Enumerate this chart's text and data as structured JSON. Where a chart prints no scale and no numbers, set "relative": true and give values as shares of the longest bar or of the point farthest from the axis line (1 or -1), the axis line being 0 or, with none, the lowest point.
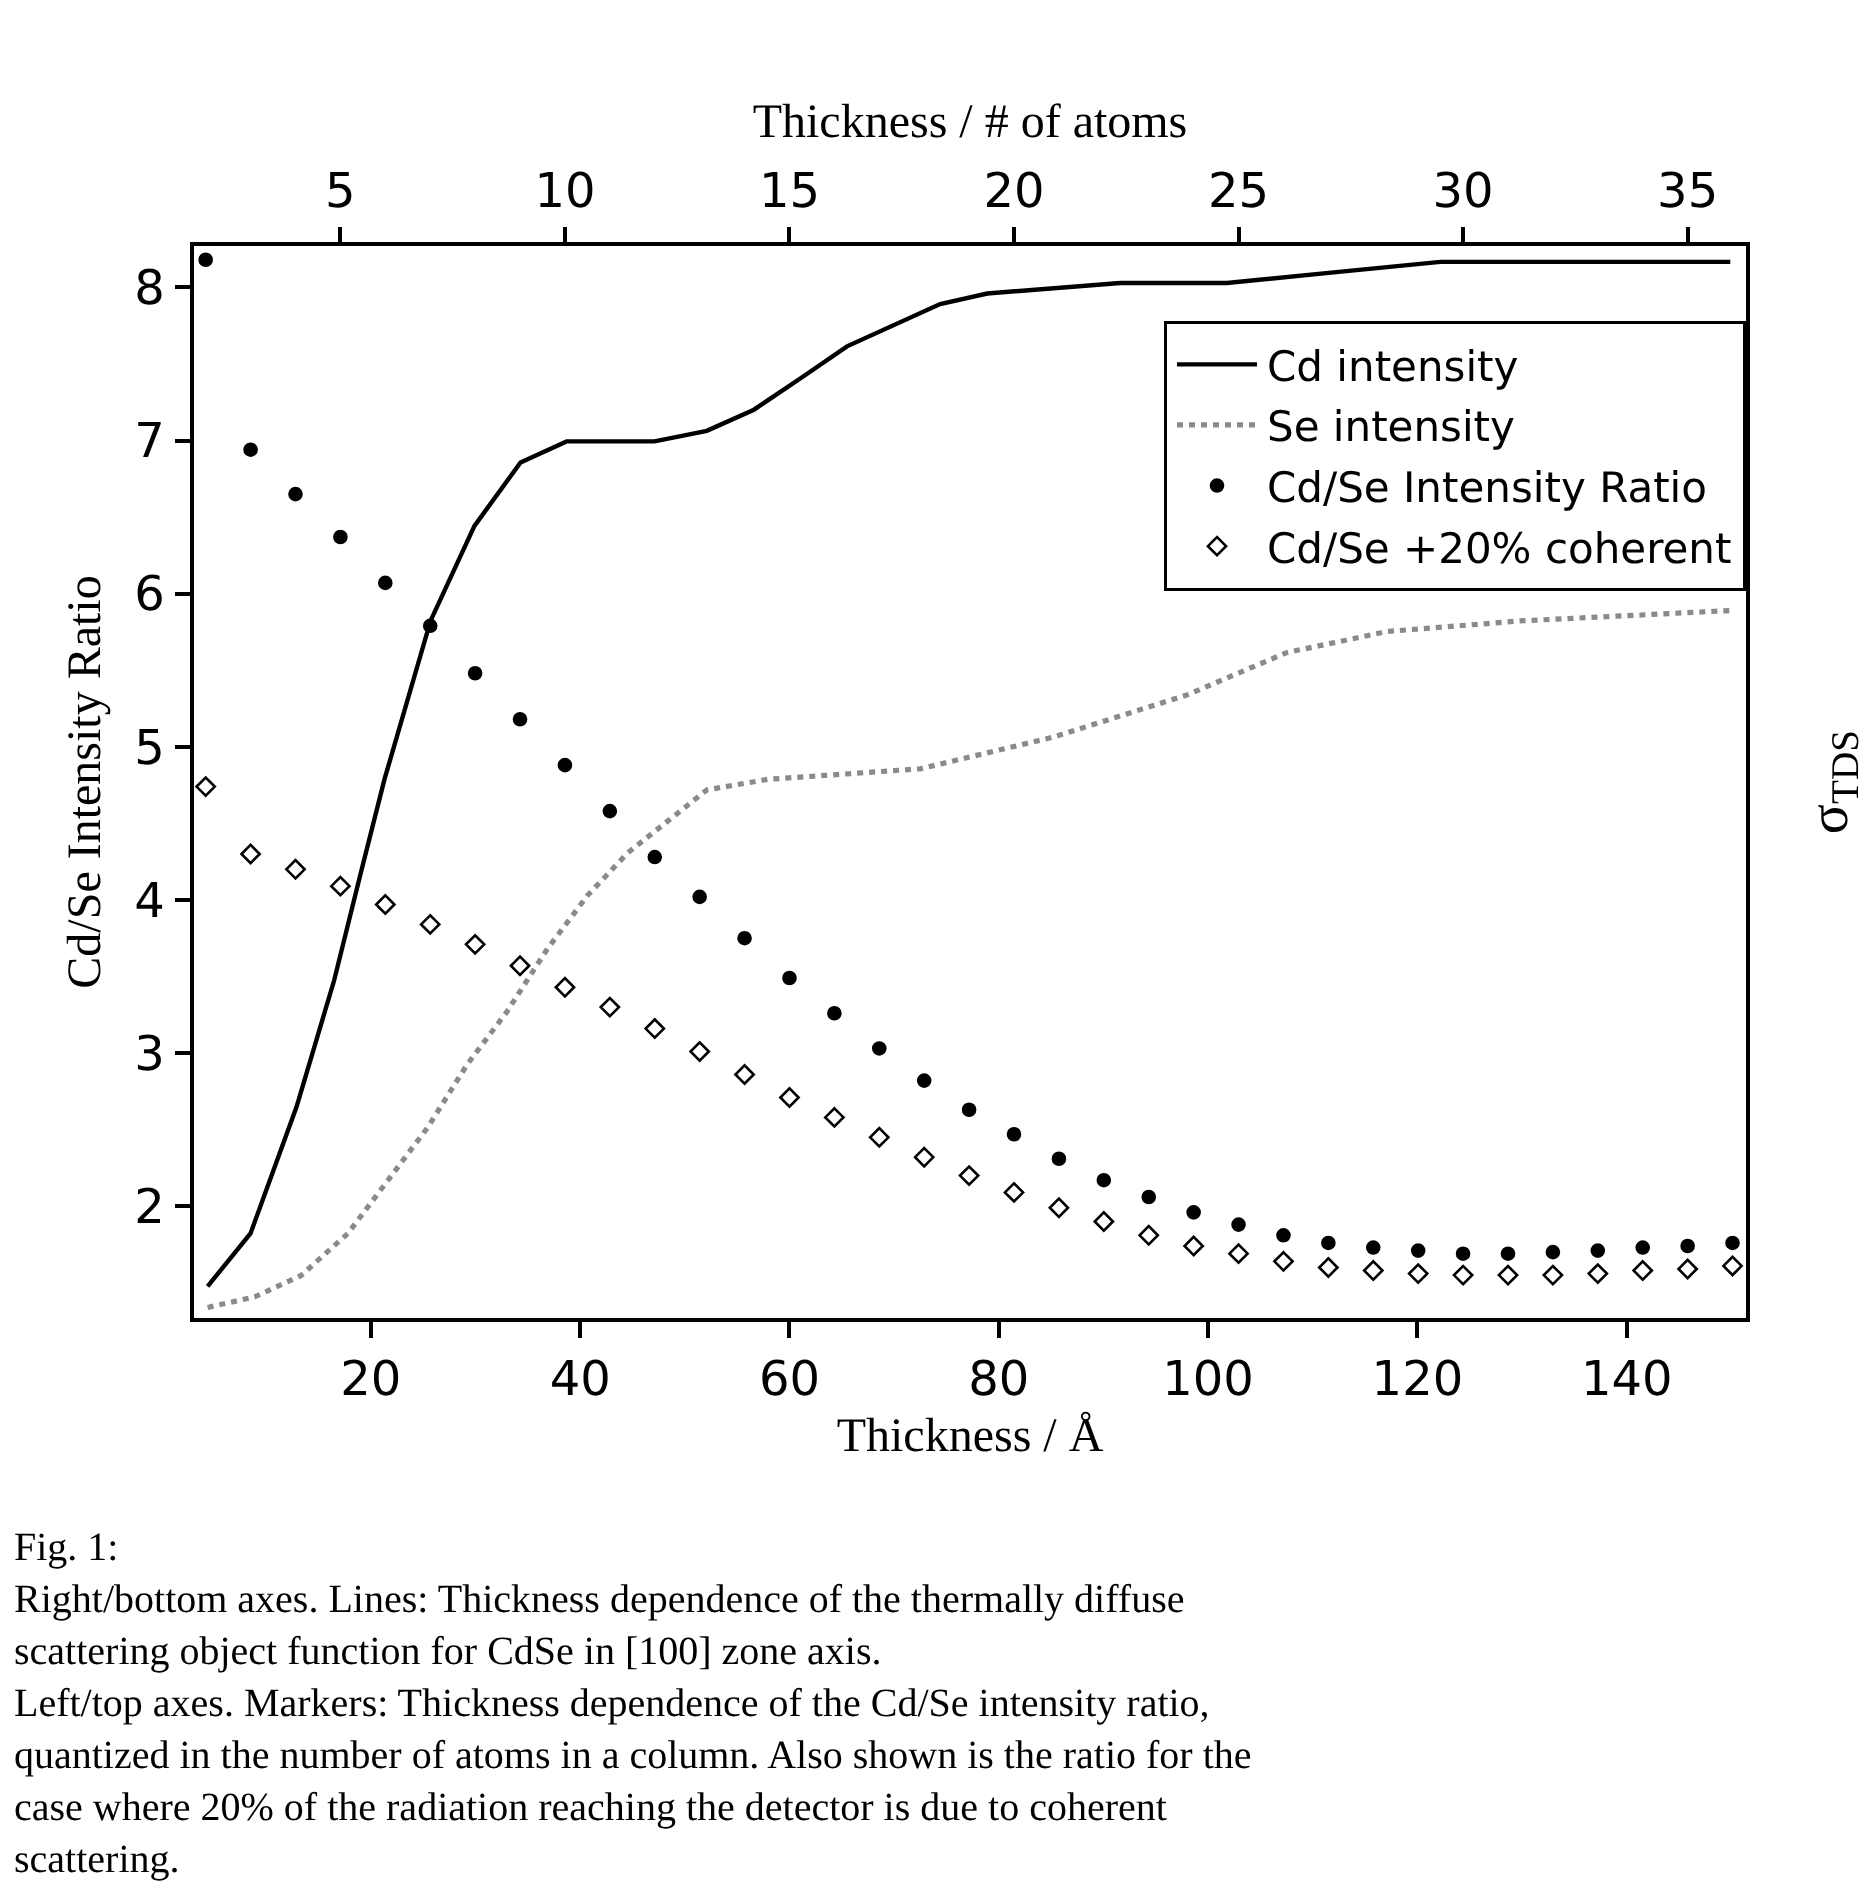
{
  "chart_data": [
    {
      "type": "line",
      "relative": true,
      "xlabel": "Thickness / Å",
      "y2label": "σ$_{TDS}$",
      "xlim": [
        3.1,
        151.4
      ],
      "xticks": [
        20,
        40,
        60,
        80,
        100,
        120,
        140
      ],
      "legend": "top right",
      "series": [
        {
          "name": "Cd intensity",
          "color": "#000000",
          "line_style": "solid",
          "x": [
            4.4,
            8.5,
            12.9,
            16.5,
            19.0,
            21.3,
            25.7,
            29.9,
            34.3,
            38.7,
            47.1,
            52.1,
            56.6,
            61.1,
            65.5,
            74.4,
            78.9,
            91.6,
            101.8,
            112.0,
            122.2,
            149.9
          ],
          "values": [
            0.03,
            0.08,
            0.2,
            0.32,
            0.42,
            0.51,
            0.66,
            0.75,
            0.81,
            0.83,
            0.83,
            0.84,
            0.86,
            0.89,
            0.92,
            0.96,
            0.97,
            0.98,
            0.98,
            0.99,
            1.0,
            1.0
          ]
        },
        {
          "name": "Se intensity",
          "color": "#8a8a8a",
          "line_style": "dotted",
          "x": [
            4.4,
            8.9,
            13.3,
            17.8,
            21.6,
            25.4,
            29.2,
            33.0,
            36.9,
            40.7,
            44.5,
            48.3,
            52.1,
            57.9,
            72.5,
            85.2,
            98.0,
            107.5,
            117.1,
            129.8,
            150.2
          ],
          "values": [
            0.01,
            0.02,
            0.04,
            0.08,
            0.13,
            0.18,
            0.24,
            0.29,
            0.35,
            0.4,
            0.44,
            0.47,
            0.5,
            0.51,
            0.52,
            0.55,
            0.59,
            0.63,
            0.65,
            0.66,
            0.67
          ]
        }
      ]
    },
    {
      "type": "scatter",
      "xlabel": "Thickness / # of atoms",
      "ylabel": "Cd/Se Intensity Ratio",
      "xlim": [
        1.74,
        36.3
      ],
      "xticks": [
        5,
        10,
        15,
        20,
        25,
        30,
        35
      ],
      "ylim": [
        1.27,
        8.27
      ],
      "yticks": [
        2,
        3,
        4,
        5,
        6,
        7,
        8
      ],
      "legend": "top right",
      "series": [
        {
          "name": "Cd/Se Intensity Ratio",
          "color": "#000000",
          "marker": "circle",
          "x": [
            2,
            3,
            4,
            5,
            6,
            7,
            8,
            9,
            10,
            11,
            12,
            13,
            14,
            15,
            16,
            17,
            18,
            19,
            20,
            21,
            22,
            23,
            24,
            25,
            26,
            27,
            28,
            29,
            30,
            31,
            32,
            33,
            34,
            35,
            36
          ],
          "values": [
            8.18,
            6.94,
            6.65,
            6.37,
            6.07,
            5.79,
            5.48,
            5.18,
            4.88,
            4.58,
            4.28,
            4.02,
            3.75,
            3.49,
            3.26,
            3.03,
            2.82,
            2.63,
            2.47,
            2.31,
            2.17,
            2.06,
            1.96,
            1.88,
            1.81,
            1.76,
            1.73,
            1.71,
            1.69,
            1.69,
            1.7,
            1.71,
            1.73,
            1.74,
            1.76
          ]
        },
        {
          "name": "Cd/Se +20% coherent",
          "color": "#000000",
          "marker": "diamond",
          "x": [
            2,
            3,
            4,
            5,
            6,
            7,
            8,
            9,
            10,
            11,
            12,
            13,
            14,
            15,
            16,
            17,
            18,
            19,
            20,
            21,
            22,
            23,
            24,
            25,
            26,
            27,
            28,
            29,
            30,
            31,
            32,
            33,
            34,
            35,
            36
          ],
          "values": [
            4.74,
            4.3,
            4.2,
            4.09,
            3.97,
            3.84,
            3.71,
            3.57,
            3.43,
            3.3,
            3.16,
            3.01,
            2.86,
            2.71,
            2.58,
            2.45,
            2.32,
            2.2,
            2.09,
            1.99,
            1.9,
            1.81,
            1.74,
            1.69,
            1.64,
            1.6,
            1.58,
            1.56,
            1.55,
            1.55,
            1.55,
            1.56,
            1.58,
            1.59,
            1.61
          ]
        }
      ],
      "annotations": [
        "Fig. 1:\nRight/bottom axes. Lines: Thickness dependence of the thermally diffuse\nscattering object function for CdSe in [100] zone axis.\nLeft/top axes. Markers: Thickness dependence of the Cd/Se intensity ratio,\nquantized in the number of atoms in a column. Also shown is the ratio for the\ncase where 20% of the radiation reaching the detector is due to coherent\nscattering."
      ]
    }
  ]
}
